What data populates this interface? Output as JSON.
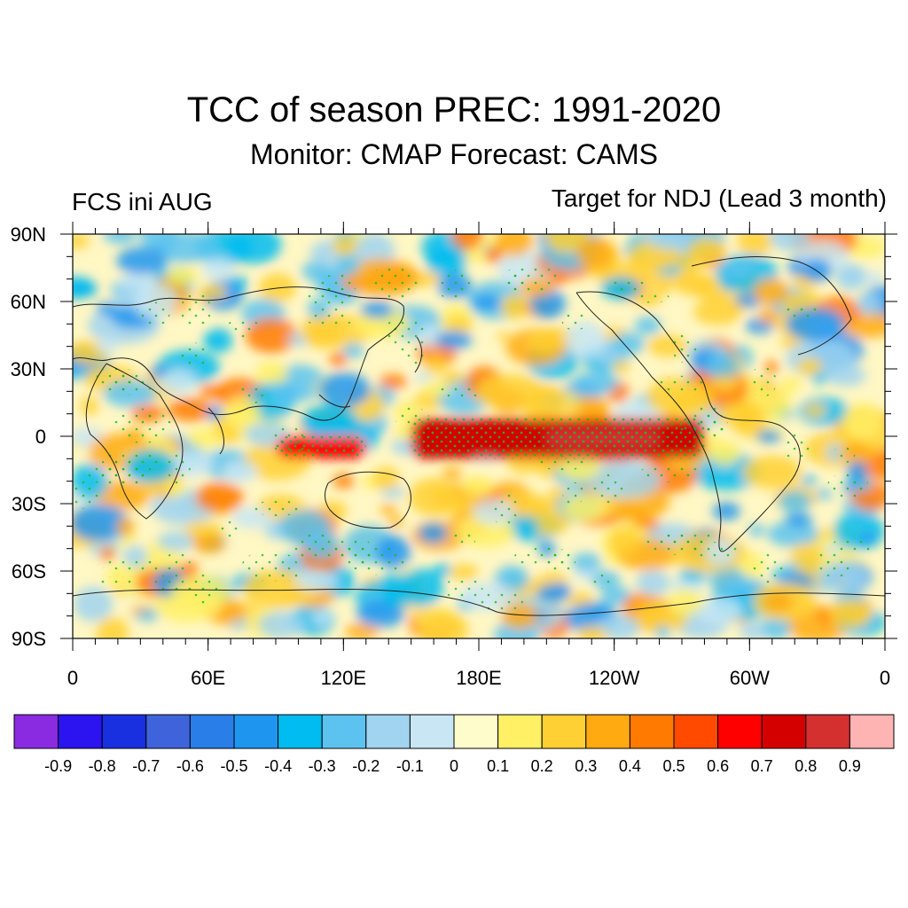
{
  "title": "TCC of season PREC: 1991-2020",
  "subtitle": "Monitor: CMAP   Forecast: CAMS",
  "left_label": "FCS ini AUG",
  "right_label": "Target for NDJ (Lead 3 month)",
  "map": {
    "projection": "cylindrical equidistant",
    "lon_range": [
      0,
      360
    ],
    "lat_range": [
      -90,
      90
    ],
    "lat_ticks": [
      {
        "value": 90,
        "label": "90N"
      },
      {
        "value": 60,
        "label": "60N"
      },
      {
        "value": 30,
        "label": "30N"
      },
      {
        "value": 0,
        "label": "0"
      },
      {
        "value": -30,
        "label": "30S"
      },
      {
        "value": -60,
        "label": "60S"
      },
      {
        "value": -90,
        "label": "90S"
      }
    ],
    "lon_ticks": [
      {
        "value": 0,
        "label": "0"
      },
      {
        "value": 60,
        "label": "60E"
      },
      {
        "value": 120,
        "label": "120E"
      },
      {
        "value": 180,
        "label": "180E"
      },
      {
        "value": 240,
        "label": "120W"
      },
      {
        "value": 300,
        "label": "60W"
      },
      {
        "value": 360,
        "label": "0"
      }
    ],
    "stippling": "green dots mark significant correlation",
    "features": [
      {
        "name": "equatorial Pacific maximum",
        "lon": [
          150,
          280
        ],
        "lat": [
          -10,
          8
        ],
        "value": 0.8
      },
      {
        "name": "central Pacific core",
        "lon": [
          210,
          260
        ],
        "lat": [
          -5,
          3
        ],
        "value": 0.9
      },
      {
        "name": "Maritime Continent / eastern Indian Ocean",
        "lon": [
          90,
          130
        ],
        "lat": [
          -10,
          0
        ],
        "value": 0.7
      }
    ]
  },
  "colorbar": {
    "colors": [
      "#8a2be2",
      "#2b14f0",
      "#1830e0",
      "#3f63da",
      "#2a7ee8",
      "#1e96f0",
      "#00bcf0",
      "#5cc3f0",
      "#a0d4f0",
      "#c8e6f4",
      "#fffccc",
      "#fff066",
      "#ffd033",
      "#ffaa10",
      "#ff7a00",
      "#ff4a00",
      "#ff0000",
      "#d40000",
      "#d43030",
      "#ffb4b4"
    ],
    "labels": [
      "-0.9",
      "-0.8",
      "-0.7",
      "-0.6",
      "-0.5",
      "-0.4",
      "-0.3",
      "-0.2",
      "-0.1",
      "0",
      "0.1",
      "0.2",
      "0.3",
      "0.4",
      "0.5",
      "0.6",
      "0.7",
      "0.8",
      "0.9"
    ]
  }
}
